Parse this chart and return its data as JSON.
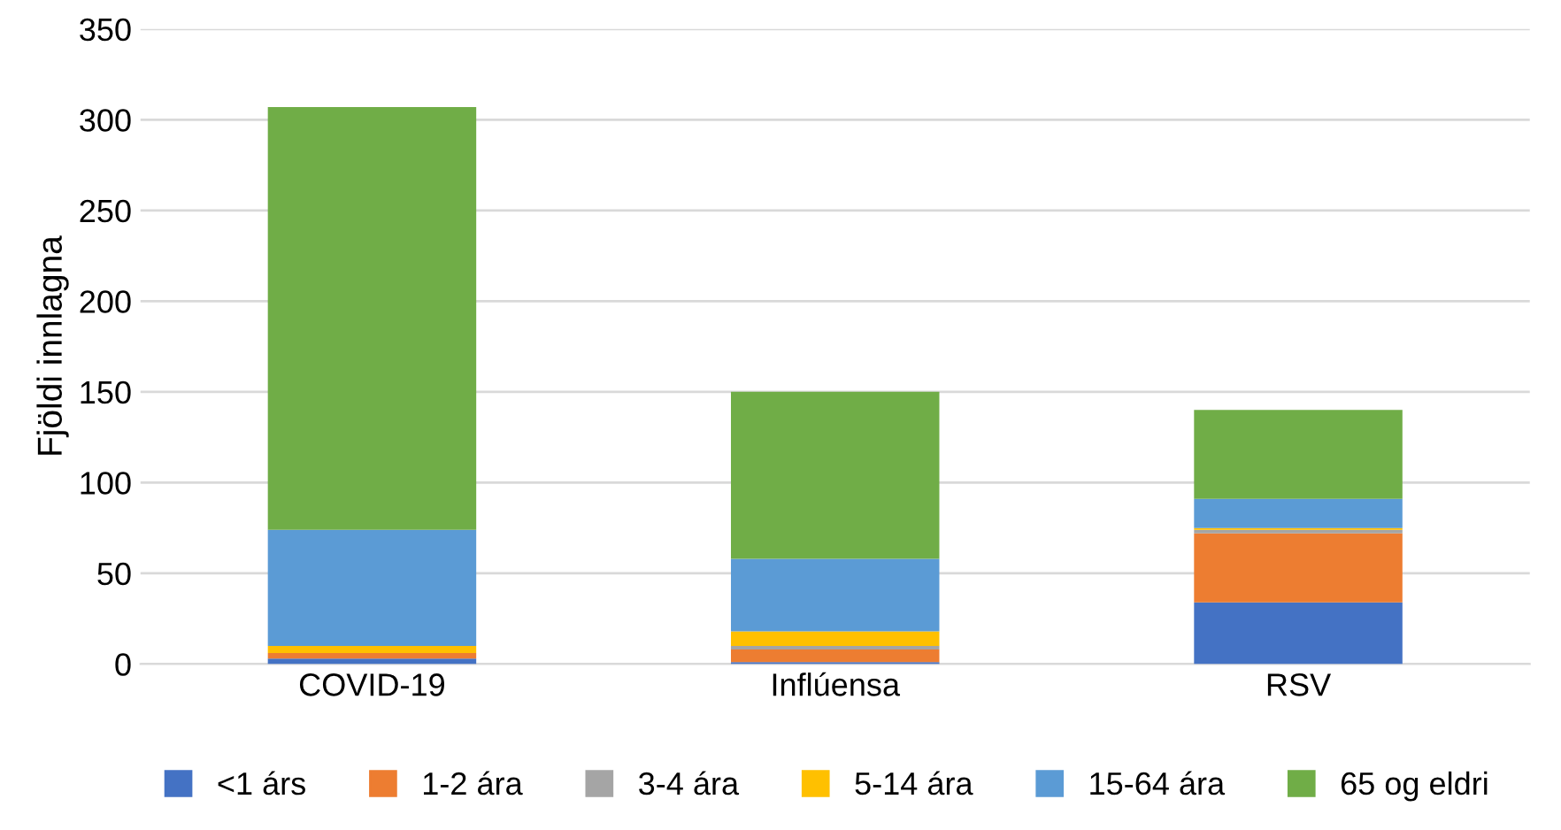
{
  "chart_data": {
    "type": "bar",
    "stacked": true,
    "ylabel": "Fjöldi innlagna",
    "categories": [
      "COVID-19",
      "Inflúensa",
      "RSV"
    ],
    "ylim": [
      0,
      350
    ],
    "yticks": [
      0,
      50,
      100,
      150,
      200,
      250,
      300,
      350
    ],
    "grid": "y",
    "legend": "bottom",
    "series": [
      {
        "name": "<1 árs",
        "color": "#4472c4",
        "values": [
          3,
          1,
          34
        ]
      },
      {
        "name": "1-2 ára",
        "color": "#ed7d31",
        "values": [
          3,
          7,
          38
        ]
      },
      {
        "name": "3-4 ára",
        "color": "#a5a5a5",
        "values": [
          null,
          2,
          2
        ]
      },
      {
        "name": "5-14 ára",
        "color": "#ffc000",
        "values": [
          4,
          8,
          1
        ]
      },
      {
        "name": "15-64 ára",
        "color": "#5b9bd5",
        "values": [
          64,
          40,
          16
        ]
      },
      {
        "name": "65 og eldri",
        "color": "#70ad47",
        "values": [
          233,
          92,
          49
        ]
      }
    ]
  }
}
